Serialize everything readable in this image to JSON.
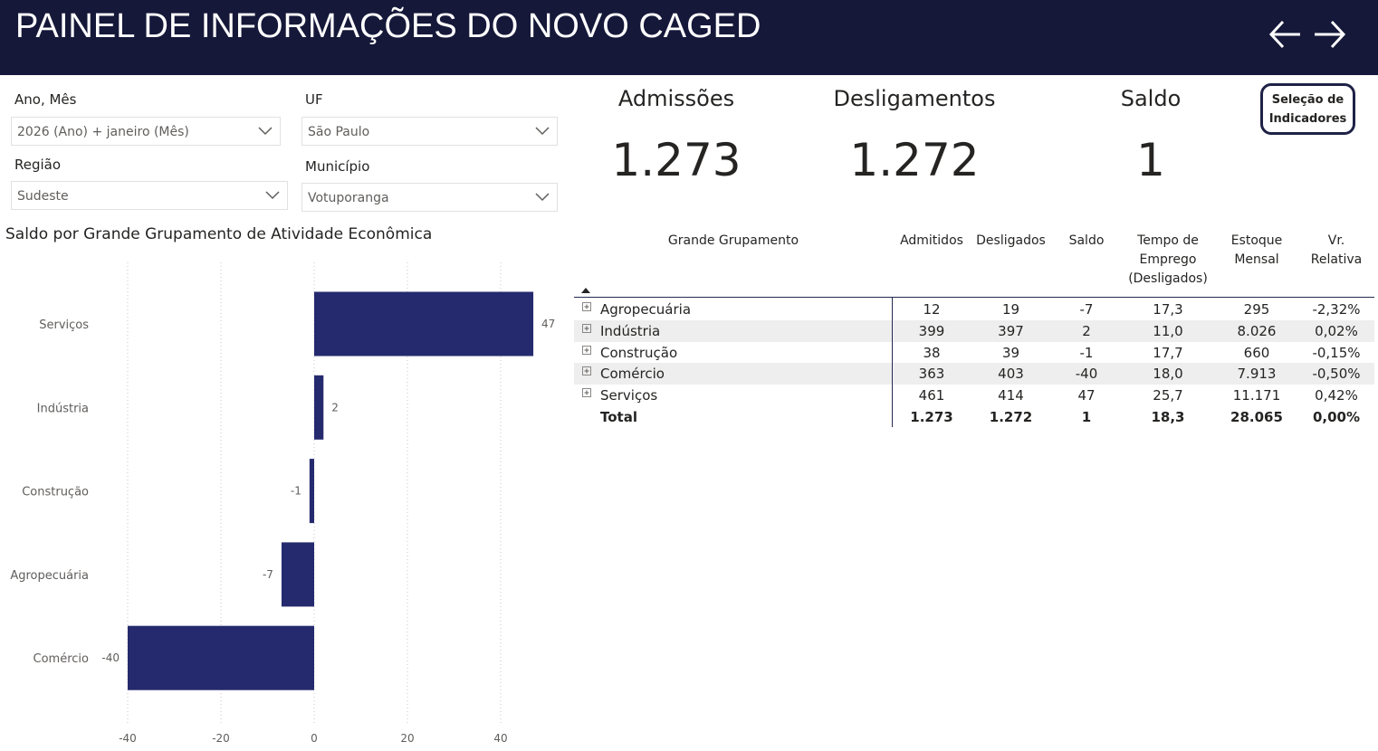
{
  "header": {
    "title": "PAINEL DE INFORMAÇÕES DO NOVO CAGED",
    "background": "#151839"
  },
  "filters": {
    "ano_mes": {
      "label": "Ano, Mês",
      "value": "2026 (Ano) + janeiro (Mês)"
    },
    "uf": {
      "label": "UF",
      "value": "São Paulo"
    },
    "regiao": {
      "label": "Região",
      "value": "Sudeste"
    },
    "municipio": {
      "label": "Município",
      "value": "Votuporanga"
    }
  },
  "kpis": {
    "admissoes": {
      "label": "Admissões",
      "value": "1.273"
    },
    "desligamentos": {
      "label": "Desligamentos",
      "value": "1.272"
    },
    "saldo": {
      "label": "Saldo",
      "value": "1"
    }
  },
  "selection_button": {
    "line1": "Seleção de",
    "line2": "Indicadores"
  },
  "chart_title": "Saldo por Grande Grupamento de Atividade Econômica",
  "chart_data": {
    "type": "bar",
    "orientation": "horizontal",
    "title": "Saldo por Grande Grupamento de Atividade Econômica",
    "categories": [
      "Serviços",
      "Indústria",
      "Construção",
      "Agropecuária",
      "Comércio"
    ],
    "values": [
      47,
      2,
      -1,
      -7,
      -40
    ],
    "xlim": [
      -40,
      47
    ],
    "xticks": [
      -40,
      -20,
      0,
      20,
      40
    ],
    "grid": true,
    "bar_color": "#252a6e"
  },
  "table": {
    "headers": {
      "grupo": "Grande Grupamento",
      "admitidos": "Admitidos",
      "desligados": "Desligados",
      "saldo": "Saldo",
      "tempo_l1": "Tempo de",
      "tempo_l2": "Emprego",
      "tempo_l3": "(Desligados)",
      "estoque_l1": "Estoque",
      "estoque_l2": "Mensal",
      "vr_l1": "Vr.",
      "vr_l2": "Relativa"
    },
    "rows": [
      {
        "grupo": "Agropecuária",
        "admitidos": "12",
        "desligados": "19",
        "saldo": "-7",
        "tempo": "17,3",
        "estoque": "295",
        "vr": "-2,32%"
      },
      {
        "grupo": "Indústria",
        "admitidos": "399",
        "desligados": "397",
        "saldo": "2",
        "tempo": "11,0",
        "estoque": "8.026",
        "vr": "0,02%"
      },
      {
        "grupo": "Construção",
        "admitidos": "38",
        "desligados": "39",
        "saldo": "-1",
        "tempo": "17,7",
        "estoque": "660",
        "vr": "-0,15%"
      },
      {
        "grupo": "Comércio",
        "admitidos": "363",
        "desligados": "403",
        "saldo": "-40",
        "tempo": "18,0",
        "estoque": "7.913",
        "vr": "-0,50%"
      },
      {
        "grupo": "Serviços",
        "admitidos": "461",
        "desligados": "414",
        "saldo": "47",
        "tempo": "25,7",
        "estoque": "11.171",
        "vr": "0,42%"
      }
    ],
    "total": {
      "grupo": "Total",
      "admitidos": "1.273",
      "desligados": "1.272",
      "saldo": "1",
      "tempo": "18,3",
      "estoque": "28.065",
      "vr": "0,00%"
    }
  }
}
